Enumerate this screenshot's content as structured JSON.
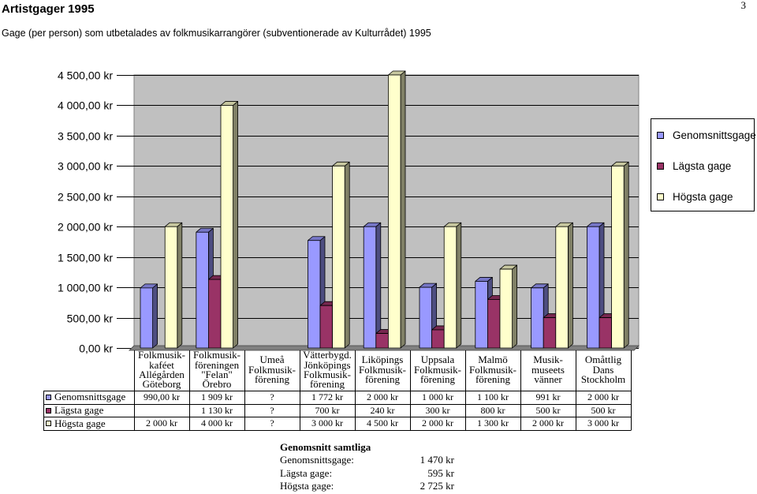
{
  "page": {
    "number": "3"
  },
  "chart_data": {
    "type": "bar",
    "title": "Artistgager 1995",
    "subtitle": "Gage (per person) som utbetalades av folkmusikarrangörer (subventionerade av Kulturrådet) 1995",
    "categories": [
      [
        "Folkmusik-",
        "kaféet",
        "Allégården",
        "Göteborg"
      ],
      [
        "Folkmusik-",
        "föreningen",
        "\"Felan\"",
        "Örebro"
      ],
      [
        "Umeå",
        "Folkmusik-",
        "förening"
      ],
      [
        "Vätterbygd.",
        "Jönköpings",
        "Folkmusik-",
        "förening"
      ],
      [
        "Liköpings",
        "Folkmusik-",
        "förening"
      ],
      [
        "Uppsala",
        "Folkmusik-",
        "förening"
      ],
      [
        "Malmö",
        "Folkmusik-",
        "förening"
      ],
      [
        "Musik-",
        "museets",
        "vänner"
      ],
      [
        "Omåttlig",
        "Dans",
        "Stockholm"
      ]
    ],
    "series": [
      {
        "name": "Genomsnittsgage",
        "color": "#9999FF",
        "values": [
          990,
          1909,
          null,
          1772,
          2000,
          1000,
          1100,
          991,
          2000
        ],
        "table": [
          "990,00 kr",
          "1 909 kr",
          "?",
          "1 772 kr",
          "2 000 kr",
          "1 000 kr",
          "1 100 kr",
          "991 kr",
          "2 000 kr"
        ]
      },
      {
        "name": "Lägsta gage",
        "color": "#993366",
        "values": [
          null,
          1130,
          null,
          700,
          240,
          300,
          800,
          500,
          500
        ],
        "table": [
          null,
          "1 130 kr",
          "?",
          "700 kr",
          "240 kr",
          "300 kr",
          "800 kr",
          "500 kr",
          "500 kr"
        ]
      },
      {
        "name": "Högsta gage",
        "color": "#FFFFCC",
        "values": [
          2000,
          4000,
          null,
          3000,
          4500,
          2000,
          1300,
          2000,
          3000
        ],
        "table": [
          "2 000 kr",
          "4 000 kr",
          "?",
          "3 000 kr",
          "4 500 kr",
          "2 000 kr",
          "1 300 kr",
          "2 000 kr",
          "3 000 kr"
        ]
      }
    ],
    "ylim": [
      0,
      4500
    ],
    "yticks": [
      {
        "value": 0,
        "label": "0,00 kr"
      },
      {
        "value": 500,
        "label": "500,00 kr"
      },
      {
        "value": 1000,
        "label": "1 000,00 kr"
      },
      {
        "value": 1500,
        "label": "1 500,00 kr"
      },
      {
        "value": 2000,
        "label": "2 000,00 kr"
      },
      {
        "value": 2500,
        "label": "2 500,00 kr"
      },
      {
        "value": 3000,
        "label": "3 000,00 kr"
      },
      {
        "value": 3500,
        "label": "3 500,00 kr"
      },
      {
        "value": 4000,
        "label": "4 000,00 kr"
      },
      {
        "value": 4500,
        "label": "4 500,00 kr"
      }
    ],
    "grid": true,
    "legend": "right"
  },
  "summary": {
    "title": "Genomsnitt samtliga",
    "rows": [
      {
        "label": "Genomsnittsgage:",
        "value": "1 470 kr"
      },
      {
        "label": "Lägsta gage:",
        "value": "595 kr"
      },
      {
        "label": "Högsta gage:",
        "value": "2 725 kr"
      }
    ]
  }
}
